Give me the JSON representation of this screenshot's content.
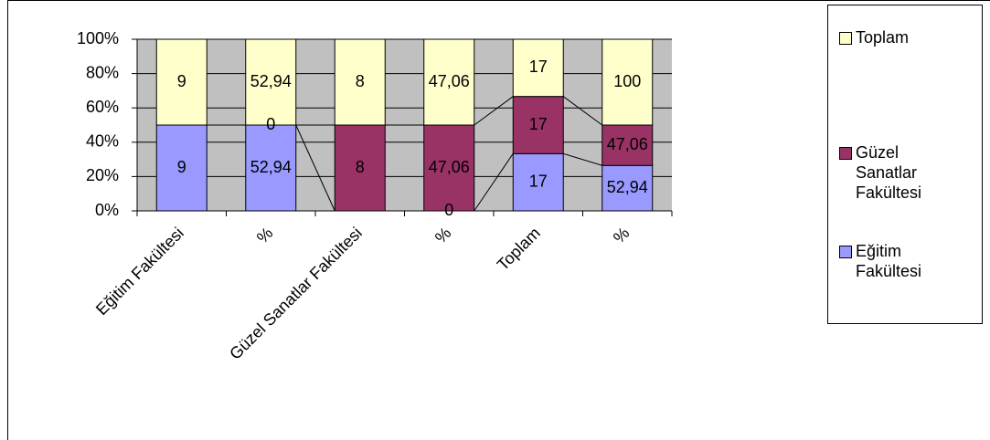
{
  "chart_data": {
    "type": "stacked_percent_bar",
    "categories": [
      "Eğitim Fakültesi",
      "%",
      "Güzel Sanatlar Fakültesi",
      "%",
      "Toplam",
      "%"
    ],
    "series": [
      {
        "name": "Eğitim Fakültesi",
        "color": "#9999ff",
        "values": [
          9,
          52.94,
          0,
          0,
          17,
          52.94
        ],
        "value_labels": [
          "9",
          "52,94",
          null,
          "0",
          "17",
          "52,94"
        ]
      },
      {
        "name": "Güzel Sanatlar Fakültesi",
        "color": "#993366",
        "values": [
          0,
          0,
          8,
          47.06,
          17,
          47.06
        ],
        "value_labels": [
          null,
          "0",
          "8",
          "47,06",
          "17",
          "47,06"
        ]
      },
      {
        "name": "Toplam",
        "color": "#ffffcc",
        "values": [
          9,
          52.94,
          8,
          47.06,
          17,
          100
        ],
        "value_labels": [
          "9",
          "52,94",
          "8",
          "47,06",
          "17",
          "100"
        ]
      }
    ],
    "ylim": [
      0,
      100
    ],
    "yticks": [
      {
        "value": 0,
        "label": "0%"
      },
      {
        "value": 20,
        "label": "20%"
      },
      {
        "value": 40,
        "label": "40%"
      },
      {
        "value": 60,
        "label": "60%"
      },
      {
        "value": 80,
        "label": "80%"
      },
      {
        "value": 100,
        "label": "100%"
      }
    ],
    "grid": true,
    "legend": "right"
  }
}
